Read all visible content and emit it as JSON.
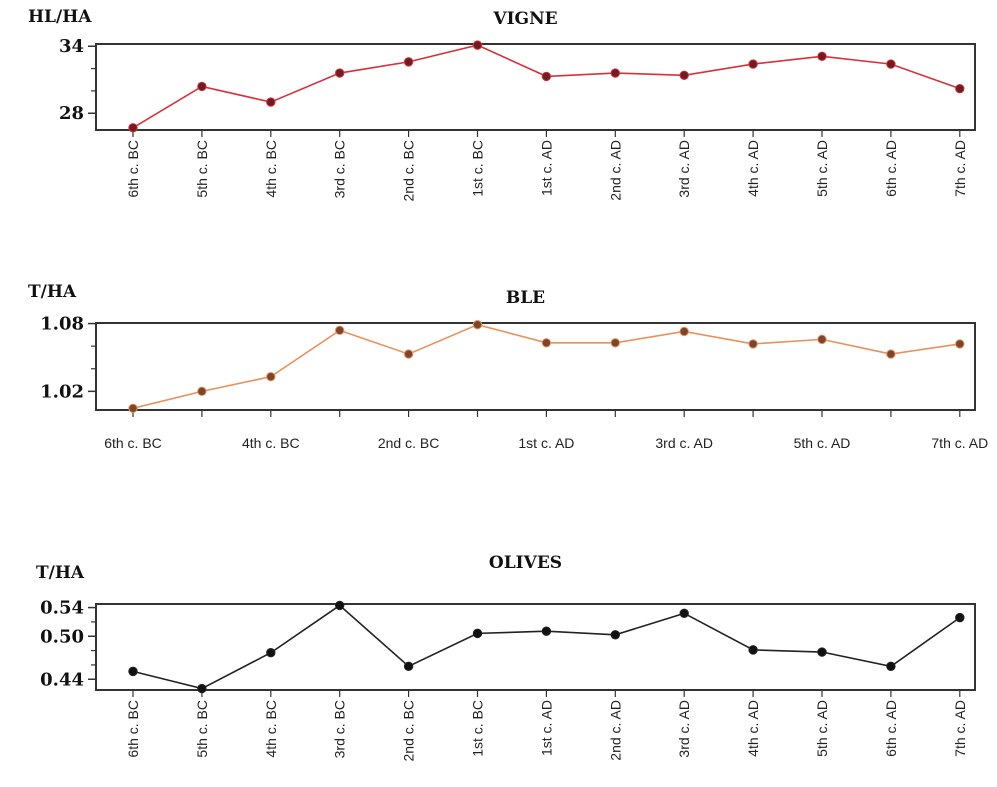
{
  "categories": [
    "6th c. BC",
    "5th c. BC",
    "4th c. BC",
    "3rd c. BC",
    "2nd c. BC",
    "1st c. BC",
    "1st c. AD",
    "2nd c. AD",
    "3rd c. AD",
    "4th c. AD",
    "5th c. AD",
    "6th c. AD",
    "7th c. AD"
  ],
  "chart_data": [
    {
      "type": "line",
      "title": "VIGNE",
      "ylabel": "HL/HA",
      "xlabel": "",
      "color": "#d8303a",
      "marker_color": "#6b1f24",
      "ylim": [
        26.5,
        34.2
      ],
      "yticks": [
        28,
        34
      ],
      "yminor": [
        30,
        32
      ],
      "x_tick_labels_rotated": true,
      "x_labels_shown": [
        "6th c. BC",
        "5th c. BC",
        "4th c. BC",
        "3rd c. BC",
        "2nd c. BC",
        "1st c. BC",
        "1st c. AD",
        "2nd c. AD",
        "3rd c. AD",
        "4th c. AD",
        "5th c. AD",
        "6th c. AD",
        "7th c. AD"
      ],
      "values": [
        26.7,
        30.4,
        29.0,
        31.6,
        32.6,
        34.1,
        31.3,
        31.6,
        31.4,
        32.4,
        33.1,
        32.4,
        30.2
      ]
    },
    {
      "type": "line",
      "title": "BLE",
      "ylabel": "T/HA",
      "xlabel": "",
      "color": "#e8915a",
      "marker_color": "#7a4630",
      "ylim": [
        1.0035,
        1.0805
      ],
      "yticks": [
        1.02,
        1.08
      ],
      "yminor": [
        1.04,
        1.06
      ],
      "x_tick_labels_rotated": false,
      "x_labels_shown": [
        "6th c. BC",
        "",
        "4th c. BC",
        "",
        "2nd c. BC",
        "",
        "1st c. AD",
        "",
        "3rd c. AD",
        "",
        "5th c. AD",
        "",
        "7th c. AD"
      ],
      "values": [
        1.005,
        1.02,
        1.033,
        1.074,
        1.053,
        1.079,
        1.063,
        1.063,
        1.073,
        1.062,
        1.066,
        1.053,
        1.062
      ]
    },
    {
      "type": "line",
      "title": "OLIVES",
      "ylabel": "T/HA",
      "xlabel": "",
      "color": "#222222",
      "marker_color": "#111111",
      "ylim": [
        0.425,
        0.545
      ],
      "yticks": [
        0.44,
        0.5,
        0.54
      ],
      "yminor": [
        0.46,
        0.48,
        0.52
      ],
      "x_tick_labels_rotated": true,
      "x_labels_shown": [
        "6th c. BC",
        "5th c. BC",
        "4th c. BC",
        "3rd c. BC",
        "2nd c. BC",
        "1st c. BC",
        "1st c. AD",
        "2nd c. AD",
        "3rd c. AD",
        "4th c. AD",
        "5th c. AD",
        "6th c. AD",
        "7th c. AD"
      ],
      "values": [
        0.451,
        0.427,
        0.477,
        0.543,
        0.458,
        0.504,
        0.507,
        0.502,
        0.532,
        0.481,
        0.478,
        0.458,
        0.526
      ]
    }
  ]
}
